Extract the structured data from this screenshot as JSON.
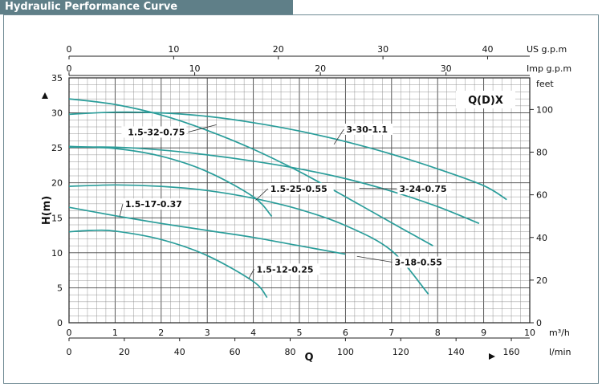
{
  "title": "Hydraulic Performance Curve",
  "chart_data": {
    "type": "line",
    "model_label": "Q(D)X",
    "ylabel": "H(m)",
    "xlabel": "Q",
    "ylim": [
      0,
      35
    ],
    "xlim_m3h": [
      0,
      10
    ],
    "y_ticks": [
      "0",
      "5",
      "10",
      "15",
      "20",
      "25",
      "30",
      "35"
    ],
    "right_axis": {
      "unit": "feet",
      "ticks": [
        "0",
        "20",
        "40",
        "60",
        "80",
        "100"
      ],
      "values": [
        0,
        20,
        40,
        60,
        80,
        100
      ]
    },
    "bottom_axes": [
      {
        "unit": "m³/h",
        "ticks": [
          "0",
          "1",
          "2",
          "3",
          "4",
          "5",
          "6",
          "7",
          "8",
          "9",
          "10"
        ],
        "values": [
          0,
          1,
          2,
          3,
          4,
          5,
          6,
          7,
          8,
          9,
          10
        ]
      },
      {
        "unit": "l/min",
        "ticks": [
          "0",
          "20",
          "40",
          "60",
          "80",
          "100",
          "120",
          "140",
          "160"
        ],
        "values": [
          0,
          20,
          40,
          60,
          80,
          100,
          120,
          140,
          160
        ]
      }
    ],
    "top_axes": [
      {
        "unit": "US g.p.m",
        "ticks": [
          "0",
          "10",
          "20",
          "30",
          "40"
        ],
        "values": [
          0,
          10,
          20,
          30,
          40
        ]
      },
      {
        "unit": "Imp g.p.m",
        "ticks": [
          "0",
          "10",
          "20",
          "30"
        ],
        "values": [
          0,
          10,
          20,
          30
        ]
      }
    ],
    "series": [
      {
        "name": "3-30-1.1",
        "x": [
          0,
          1,
          2,
          3,
          4,
          5,
          6,
          7,
          8,
          9,
          9.5
        ],
        "y": [
          29.8,
          30.1,
          30.0,
          29.5,
          28.6,
          27.4,
          25.9,
          24.1,
          22.0,
          19.6,
          17.6
        ]
      },
      {
        "name": "1.5-32-0.75",
        "x": [
          0,
          1,
          2,
          3,
          4,
          5,
          6,
          7,
          7.9
        ],
        "y": [
          32.0,
          31.2,
          29.7,
          27.5,
          24.8,
          21.6,
          18.0,
          14.3,
          11.0
        ]
      },
      {
        "name": "3-24-0.75",
        "x": [
          0,
          1,
          2,
          3,
          4,
          5,
          6,
          7,
          8,
          8.9
        ],
        "y": [
          25.1,
          25.1,
          24.7,
          24.0,
          23.1,
          22.0,
          20.6,
          18.8,
          16.6,
          14.2
        ]
      },
      {
        "name": "1.5-25-0.55",
        "x": [
          0,
          1,
          2,
          3,
          4,
          4.4
        ],
        "y": [
          25.2,
          24.9,
          23.8,
          21.6,
          18.0,
          15.2
        ]
      },
      {
        "name": "3-18-0.55",
        "x": [
          0,
          1,
          2,
          3,
          4,
          5,
          6,
          7,
          7.8
        ],
        "y": [
          19.5,
          19.7,
          19.5,
          18.9,
          17.8,
          16.2,
          13.9,
          10.3,
          4.1
        ]
      },
      {
        "name": "1.5-17-0.37",
        "x": [
          0,
          1,
          2,
          3,
          4,
          5,
          6
        ],
        "y": [
          16.5,
          15.3,
          14.2,
          13.2,
          12.2,
          11.0,
          9.8
        ]
      },
      {
        "name": "1.5-12-0.25",
        "x": [
          0,
          0.5,
          1,
          2,
          3,
          4,
          4.3
        ],
        "y": [
          13.0,
          13.2,
          13.1,
          11.9,
          9.6,
          5.9,
          3.6
        ]
      }
    ],
    "label_positions": [
      {
        "name": "1.5-32-0.75",
        "x": 2.55,
        "y": 26.8,
        "anchor": "end",
        "leader_to": [
          3.2,
          28.3
        ]
      },
      {
        "name": "3-30-1.1",
        "x": 6.0,
        "y": 27.2,
        "anchor": "start",
        "leader_to": [
          5.75,
          25.5
        ]
      },
      {
        "name": "1.5-25-0.55",
        "x": 4.35,
        "y": 18.7,
        "anchor": "start",
        "leader_to": [
          4.05,
          17.5
        ]
      },
      {
        "name": "3-24-0.75",
        "x": 7.15,
        "y": 18.7,
        "anchor": "start",
        "leader_to": [
          6.3,
          19.2
        ]
      },
      {
        "name": "1.5-17-0.37",
        "x": 1.2,
        "y": 16.5,
        "anchor": "start",
        "leader_to": [
          1.1,
          15.2
        ]
      },
      {
        "name": "3-18-0.55",
        "x": 7.05,
        "y": 8.2,
        "anchor": "start",
        "leader_to": [
          6.25,
          9.5
        ]
      },
      {
        "name": "1.5-12-0.25",
        "x": 4.05,
        "y": 7.2,
        "anchor": "start",
        "leader_to": [
          3.9,
          6.3
        ]
      }
    ],
    "grid": true
  }
}
